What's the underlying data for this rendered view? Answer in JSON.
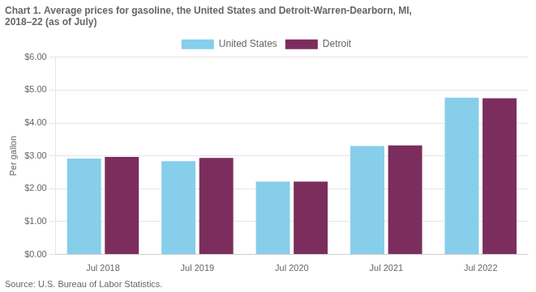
{
  "chart_data": {
    "type": "bar",
    "title": [
      "Chart 1. Average prices for gasoline, the United States and Detroit-Warren-Dearborn, MI,",
      "2018–22 (as of July)"
    ],
    "ylabel": "Per gallon",
    "source": "Source: U.S. Bureau of Labor Statistics.",
    "categories": [
      "Jul 2018",
      "Jul 2019",
      "Jul 2020",
      "Jul 2021",
      "Jul 2022"
    ],
    "series": [
      {
        "name": "United States",
        "color": "#87CEEB",
        "values": [
          2.92,
          2.84,
          2.22,
          3.3,
          4.77
        ]
      },
      {
        "name": "Detroit",
        "color": "#7B2D5E",
        "values": [
          2.97,
          2.94,
          2.22,
          3.32,
          4.75
        ]
      }
    ],
    "ylim": [
      0,
      6.0
    ],
    "yticks": [
      {
        "value": 0.0,
        "label": "$0.00"
      },
      {
        "value": 1.0,
        "label": "$1.00"
      },
      {
        "value": 2.0,
        "label": "$2.00"
      },
      {
        "value": 3.0,
        "label": "$3.00"
      },
      {
        "value": 4.0,
        "label": "$4.00"
      },
      {
        "value": 5.0,
        "label": "$5.00"
      },
      {
        "value": 6.0,
        "label": "$6.00"
      }
    ],
    "grid": true,
    "legend": "top"
  }
}
